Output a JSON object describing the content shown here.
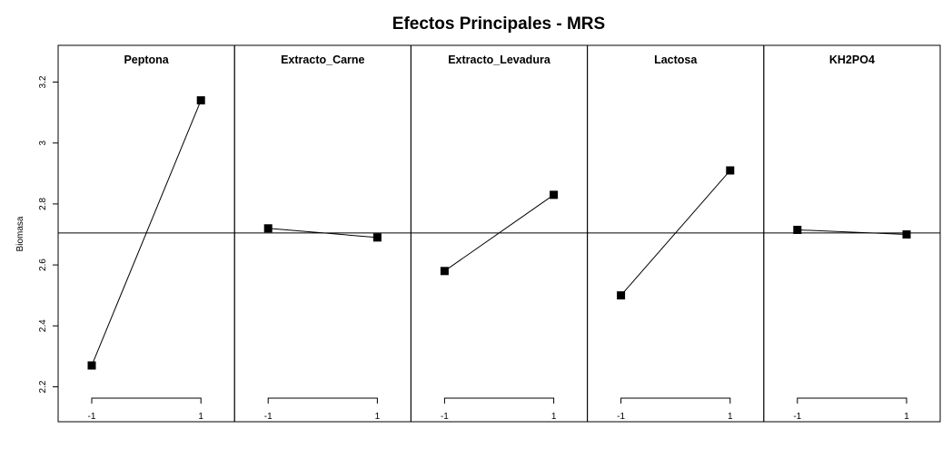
{
  "chart_data": {
    "type": "line",
    "title": "Efectos Principales - MRS",
    "ylabel": "Biomasa",
    "ylim": [
      2.1,
      3.3
    ],
    "yticks": [
      "2.2",
      "2.4",
      "2.6",
      "2.8",
      "3",
      "3.2"
    ],
    "xticks": [
      "-1",
      "1"
    ],
    "x": [
      -1,
      1
    ],
    "grand_mean": 2.705,
    "panels": [
      {
        "name": "Peptona",
        "values": [
          2.27,
          3.14
        ]
      },
      {
        "name": "Extracto_Carne",
        "values": [
          2.72,
          2.69
        ]
      },
      {
        "name": "Extracto_Levadura",
        "values": [
          2.58,
          2.83
        ]
      },
      {
        "name": "Lactosa",
        "values": [
          2.5,
          2.91
        ]
      },
      {
        "name": "KH2PO4",
        "values": [
          2.715,
          2.7
        ]
      }
    ],
    "grid": false,
    "marker": "square"
  }
}
